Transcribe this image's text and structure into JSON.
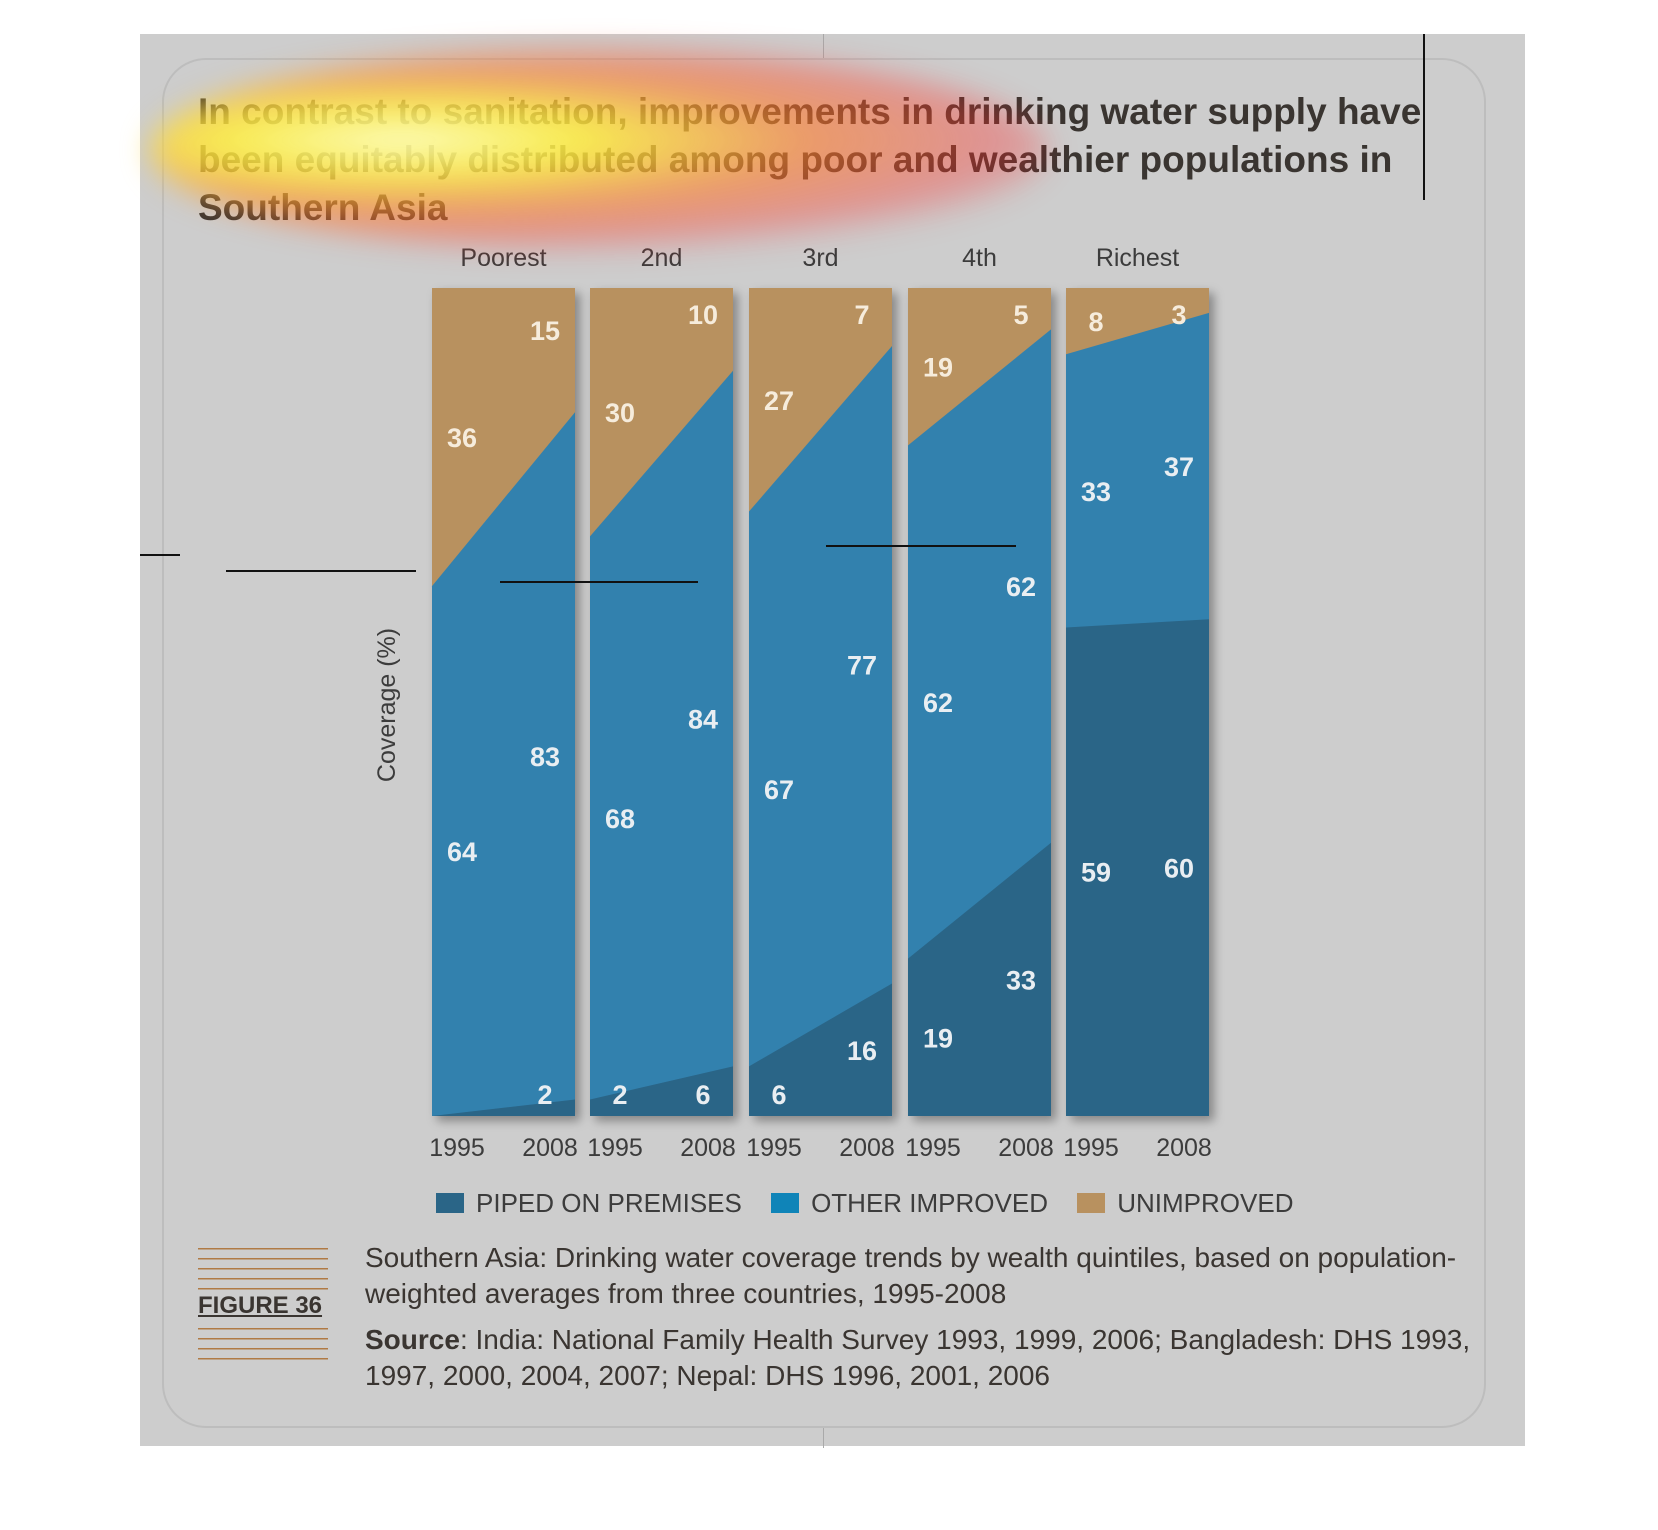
{
  "title": "In contrast to sanitation, improvements in drinking water supply have been equitably distributed among poor and wealthier populations in Southern Asia",
  "figure_label": "FIGURE 36",
  "caption": "Southern Asia: Drinking water coverage trends by wealth quintiles, based on population-weighted averages from three countries, 1995-2008",
  "source_label": "Source",
  "source_text": ": India: National Family Health Survey 1993, 1999, 2006; Bangladesh: DHS 1993, 1997, 2000, 2004, 2007; Nepal: DHS 1996, 2001, 2006",
  "colors": {
    "piped": "#2a6587",
    "other": "#3381ae",
    "unimproved": "#b8915f",
    "background": "#cdcdcd"
  },
  "chart_data": {
    "type": "area",
    "ylabel": "Coverage (%)",
    "ylim": [
      0,
      100
    ],
    "groups": [
      "Poorest",
      "2nd",
      "3rd",
      "4th",
      "Richest"
    ],
    "x": [
      "1995",
      "2008"
    ],
    "series": [
      {
        "name": "PIPED ON PREMISES",
        "values": [
          [
            0,
            2
          ],
          [
            2,
            6
          ],
          [
            6,
            16
          ],
          [
            19,
            33
          ],
          [
            59,
            60
          ]
        ]
      },
      {
        "name": "OTHER IMPROVED",
        "values": [
          [
            64,
            83
          ],
          [
            68,
            84
          ],
          [
            67,
            77
          ],
          [
            62,
            62
          ],
          [
            33,
            37
          ]
        ]
      },
      {
        "name": "UNIMPROVED",
        "values": [
          [
            36,
            15
          ],
          [
            30,
            10
          ],
          [
            27,
            7
          ],
          [
            19,
            5
          ],
          [
            8,
            3
          ]
        ]
      }
    ],
    "value_labels": [
      {
        "piped": [
          "",
          "2"
        ],
        "other": [
          "64",
          "83"
        ],
        "unimproved": [
          "36",
          "15"
        ]
      },
      {
        "piped": [
          "2",
          "6"
        ],
        "other": [
          "68",
          "84"
        ],
        "unimproved": [
          "30",
          "10"
        ]
      },
      {
        "piped": [
          "6",
          "16"
        ],
        "other": [
          "67",
          "77"
        ],
        "unimproved": [
          "27",
          "7"
        ]
      },
      {
        "piped": [
          "19",
          "33"
        ],
        "other": [
          "62",
          "62"
        ],
        "unimproved": [
          "19",
          "5"
        ]
      },
      {
        "piped": [
          "59",
          "60"
        ],
        "other": [
          "33",
          "37"
        ],
        "unimproved": [
          "8",
          "3"
        ]
      }
    ],
    "legend": [
      "PIPED ON PREMISES",
      "OTHER IMPROVED",
      "UNIMPROVED"
    ],
    "legend_position": "bottom"
  }
}
